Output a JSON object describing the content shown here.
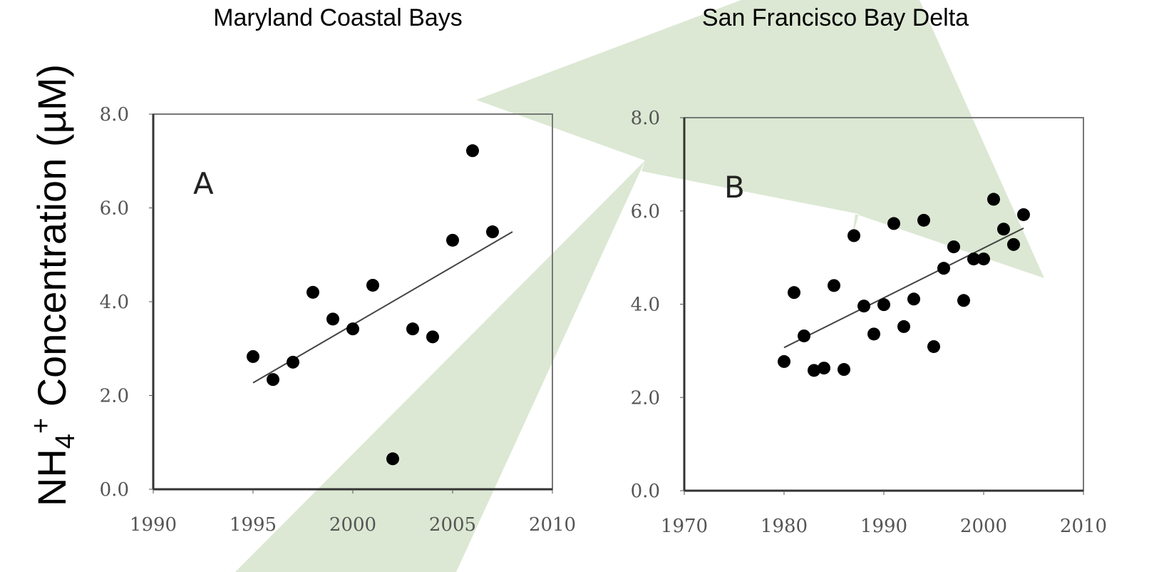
{
  "y_label": {
    "base": "NH",
    "sub": "4",
    "sup": "+",
    "rest": " Concentration (µM)"
  },
  "chart_data": [
    {
      "type": "scatter",
      "title": "Maryland Coastal Bays",
      "panel": "A",
      "color": "#000000",
      "x": [
        1995,
        1996,
        1997,
        1998,
        1999,
        2000,
        2001,
        2002,
        2003,
        2004,
        2005,
        2006,
        2007
      ],
      "values": [
        2.83,
        2.34,
        2.71,
        4.2,
        3.63,
        3.42,
        4.35,
        0.65,
        3.42,
        3.25,
        5.31,
        7.22,
        5.49
      ],
      "trendline": {
        "x": [
          1995,
          2008
        ],
        "y": [
          2.27,
          5.49
        ]
      },
      "xlim": [
        1990,
        2010
      ],
      "xticks": [
        1990,
        1995,
        2000,
        2005,
        2010
      ],
      "ylim": [
        0,
        8
      ],
      "yticks": [
        {
          "value": 0,
          "label": "0.0"
        },
        {
          "value": 2,
          "label": "2.0"
        },
        {
          "value": 4,
          "label": "4.0"
        },
        {
          "value": 6,
          "label": "6.0"
        },
        {
          "value": 8,
          "label": "8.0"
        }
      ],
      "grid": false
    },
    {
      "type": "scatter",
      "title": "San Francisco Bay Delta",
      "panel": "B",
      "color": "#000000",
      "x": [
        1980,
        1981,
        1982,
        1983,
        1984,
        1985,
        1986,
        1987,
        1988,
        1989,
        1990,
        1991,
        1992,
        1993,
        1994,
        1995,
        1996,
        1997,
        1998,
        1999,
        2000,
        2001,
        2002,
        2003,
        2004
      ],
      "values": [
        2.77,
        4.25,
        3.32,
        2.58,
        2.63,
        4.4,
        2.6,
        5.47,
        3.96,
        3.36,
        3.99,
        5.73,
        3.52,
        4.11,
        5.8,
        3.09,
        4.77,
        5.23,
        4.08,
        4.97,
        4.97,
        6.25,
        5.61,
        5.28,
        5.92
      ],
      "trendline": {
        "x": [
          1980,
          2004
        ],
        "y": [
          3.07,
          5.63
        ]
      },
      "xlim": [
        1970,
        2010
      ],
      "xticks": [
        1970,
        1980,
        1990,
        2000,
        2010
      ],
      "ylim": [
        0,
        8
      ],
      "yticks": [
        {
          "value": 0,
          "label": "0.0"
        },
        {
          "value": 2,
          "label": "2.0"
        },
        {
          "value": 4,
          "label": "4.0"
        },
        {
          "value": 6,
          "label": "6.0"
        },
        {
          "value": 8,
          "label": "8.0"
        }
      ],
      "grid": false
    }
  ]
}
